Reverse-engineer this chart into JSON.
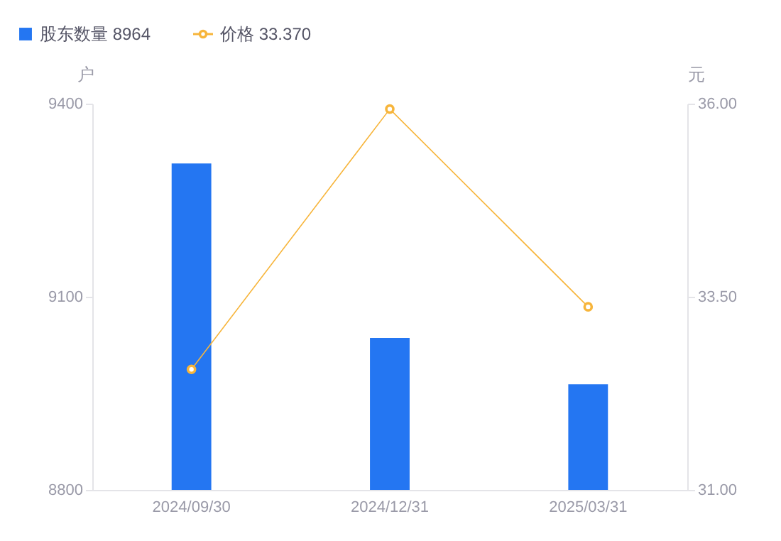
{
  "chart_data": {
    "type": "bar",
    "categories": [
      "2024/09/30",
      "2024/12/31",
      "2025/03/31"
    ],
    "ylabel": "户",
    "y2label": "元",
    "series": [
      {
        "name": "股东数量 8964",
        "color": "#2476f2",
        "values": [
          9307,
          9036,
          8964
        ]
      },
      {
        "name": "价格 33.370",
        "type": "line",
        "axis": "y2",
        "color": "#f7b53b",
        "values": [
          32.56,
          35.93,
          33.37
        ],
        "marker": "circle"
      }
    ],
    "ylim": [
      8800,
      9400
    ],
    "yticks": [
      8800,
      9100,
      9400
    ],
    "y2lim": [
      31,
      36
    ],
    "y2ticks": [
      {
        "value": 31,
        "label": "31.00"
      },
      {
        "value": 33.5,
        "label": "33.50"
      },
      {
        "value": 36,
        "label": "36.00"
      }
    ],
    "grid": false,
    "legend": "top left"
  }
}
